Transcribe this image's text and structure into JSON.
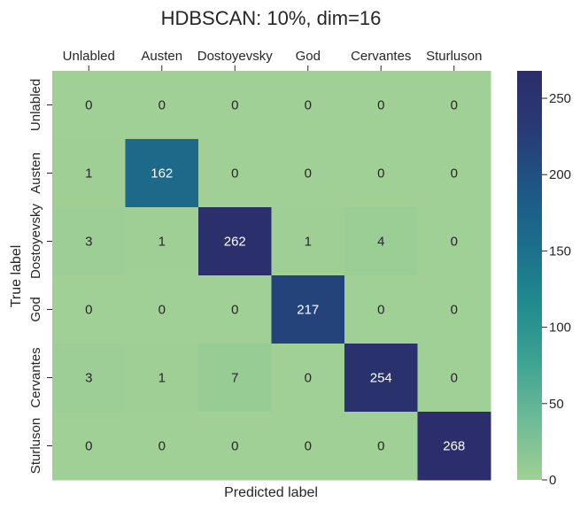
{
  "chart_data": {
    "type": "heatmap",
    "title": "HDBSCAN: 10%, dim=16",
    "xlabel": "Predicted label",
    "ylabel": "True label",
    "x_categories": [
      "Unlabled",
      "Austen",
      "Dostoyevsky",
      "God",
      "Cervantes",
      "Sturluson"
    ],
    "y_categories": [
      "Unlabled",
      "Austen",
      "Dostoyevsky",
      "God",
      "Cervantes",
      "Sturluson"
    ],
    "values": [
      [
        0,
        0,
        0,
        0,
        0,
        0
      ],
      [
        1,
        162,
        0,
        0,
        0,
        0
      ],
      [
        3,
        1,
        262,
        1,
        4,
        0
      ],
      [
        0,
        0,
        0,
        217,
        0,
        0
      ],
      [
        3,
        1,
        7,
        0,
        254,
        0
      ],
      [
        0,
        0,
        0,
        0,
        0,
        268
      ]
    ],
    "colorbar": {
      "min": 0,
      "max": 268,
      "ticks": [
        0,
        50,
        100,
        150,
        200,
        250
      ]
    },
    "colormap": [
      "#a0d095",
      "#6ebb96",
      "#3ea393",
      "#218b8e",
      "#1b6f8b",
      "#1e5686",
      "#283a75",
      "#2b2e6a"
    ],
    "x_axis_position": "top"
  }
}
